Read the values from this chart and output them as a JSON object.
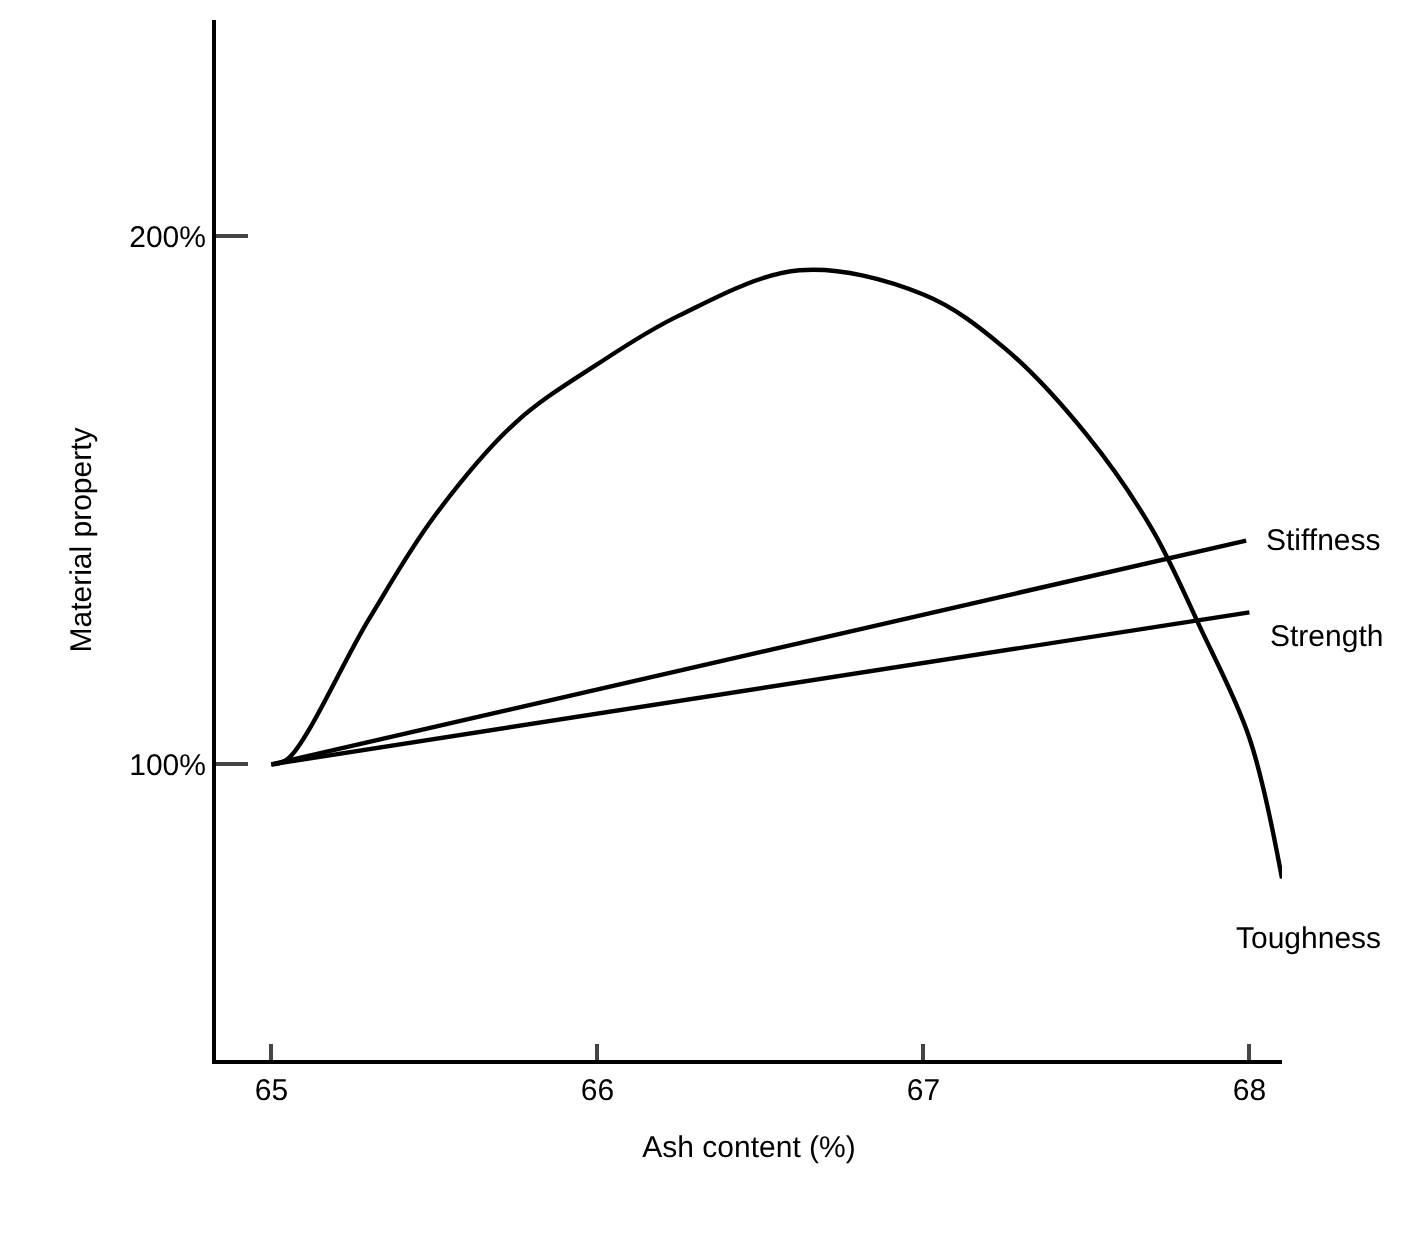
{
  "chart_data": {
    "type": "line",
    "xlabel": "Ash content (%)",
    "ylabel": "Material property",
    "xlim": [
      64.83,
      68.1
    ],
    "ylim": [
      44,
      241
    ],
    "xticks": [
      65,
      66,
      67,
      68
    ],
    "yticks": [
      {
        "value": 100,
        "label": "100%"
      },
      {
        "value": 200,
        "label": "200%"
      }
    ],
    "legend": false,
    "marker": "none",
    "line_style": "solid",
    "series": [
      {
        "name": "Stiffness",
        "color": "#000000",
        "x": [
          65.0,
          67.99
        ],
        "values": [
          100,
          142.4
        ]
      },
      {
        "name": "Strength",
        "color": "#000000",
        "x": [
          65.0,
          68.0
        ],
        "values": [
          100,
          128.8
        ]
      },
      {
        "name": "Toughness",
        "color": "#000000",
        "x": [
          65.0,
          65.05,
          65.3,
          65.5,
          65.75,
          66.0,
          66.25,
          66.62,
          67.0,
          67.25,
          67.5,
          67.7,
          67.85,
          68.0,
          68.1
        ],
        "values": [
          100,
          101,
          127.6,
          147,
          164.8,
          175.8,
          185,
          193.6,
          189,
          178.8,
          162.5,
          144.7,
          125.8,
          105,
          78.4
        ]
      }
    ]
  }
}
